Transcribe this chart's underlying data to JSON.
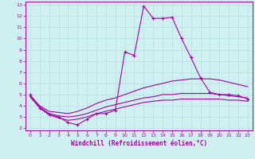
{
  "xlabel": "Windchill (Refroidissement éolien,°C)",
  "background_color": "#cff0f0",
  "line_color": "#aa00aa",
  "xlim": [
    -0.5,
    23.5
  ],
  "ylim": [
    1.8,
    13.3
  ],
  "xticks": [
    0,
    1,
    2,
    3,
    4,
    5,
    6,
    7,
    8,
    9,
    10,
    11,
    12,
    13,
    14,
    15,
    16,
    17,
    18,
    19,
    20,
    21,
    22,
    23
  ],
  "yticks": [
    2,
    3,
    4,
    5,
    6,
    7,
    8,
    9,
    10,
    11,
    12,
    13
  ],
  "grid_color": "#b8e0e0",
  "main_curve_x": [
    0,
    1,
    2,
    3,
    4,
    5,
    6,
    7,
    8,
    9,
    10,
    11,
    12,
    13,
    14,
    15,
    16,
    17,
    18,
    19,
    20,
    21,
    22,
    23
  ],
  "main_curve_y": [
    5.0,
    3.8,
    3.2,
    3.0,
    2.5,
    2.3,
    2.8,
    3.3,
    3.3,
    3.6,
    8.8,
    8.5,
    12.9,
    11.8,
    11.8,
    11.9,
    10.0,
    8.3,
    6.5,
    5.2,
    5.0,
    5.0,
    4.9,
    4.6
  ],
  "env_upper_x": [
    0,
    1,
    2,
    3,
    4,
    5,
    6,
    7,
    8,
    9,
    10,
    11,
    12,
    13,
    14,
    15,
    16,
    17,
    18,
    19,
    20,
    21,
    22,
    23
  ],
  "env_upper_y": [
    4.9,
    4.0,
    3.5,
    3.4,
    3.3,
    3.5,
    3.8,
    4.2,
    4.5,
    4.7,
    5.0,
    5.3,
    5.6,
    5.8,
    6.0,
    6.2,
    6.3,
    6.4,
    6.4,
    6.4,
    6.3,
    6.1,
    5.9,
    5.7
  ],
  "env_mid_x": [
    0,
    1,
    2,
    3,
    4,
    5,
    6,
    7,
    8,
    9,
    10,
    11,
    12,
    13,
    14,
    15,
    16,
    17,
    18,
    19,
    20,
    21,
    22,
    23
  ],
  "env_mid_y": [
    4.8,
    3.9,
    3.3,
    3.1,
    3.0,
    3.1,
    3.3,
    3.6,
    3.9,
    4.1,
    4.3,
    4.5,
    4.7,
    4.8,
    5.0,
    5.0,
    5.1,
    5.1,
    5.1,
    5.1,
    5.0,
    4.9,
    4.8,
    4.7
  ],
  "env_lower_x": [
    0,
    1,
    2,
    3,
    4,
    5,
    6,
    7,
    8,
    9,
    10,
    11,
    12,
    13,
    14,
    15,
    16,
    17,
    18,
    19,
    20,
    21,
    22,
    23
  ],
  "env_lower_y": [
    4.8,
    3.8,
    3.2,
    2.9,
    2.7,
    2.8,
    3.0,
    3.3,
    3.5,
    3.7,
    3.9,
    4.1,
    4.3,
    4.4,
    4.5,
    4.5,
    4.6,
    4.6,
    4.6,
    4.6,
    4.6,
    4.5,
    4.5,
    4.4
  ]
}
